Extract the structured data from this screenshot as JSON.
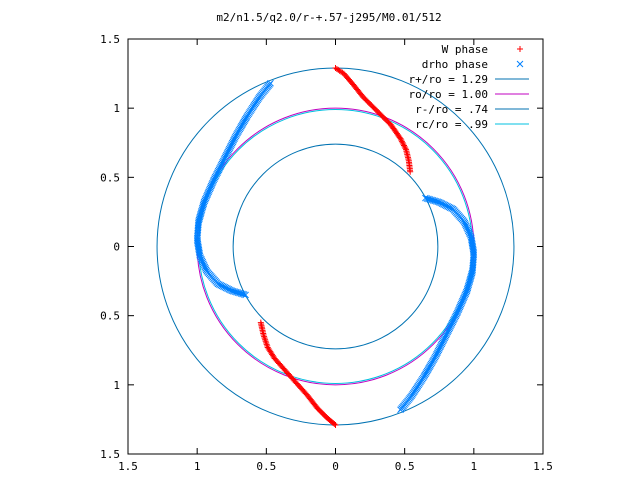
{
  "chart_data": {
    "type": "scatter",
    "title": "m2/n1.5/q2.0/r-+.57-j295/M0.01/512",
    "xlabel": "",
    "ylabel": "",
    "xlim": [
      -1.5,
      1.5
    ],
    "ylim": [
      -1.5,
      1.5
    ],
    "x_ticks": [
      -1.5,
      -1,
      -0.5,
      0,
      0.5,
      1,
      1.5
    ],
    "x_tick_labels": [
      "1.5",
      "1",
      "0.5",
      "0",
      "0.5",
      "1",
      "1.5"
    ],
    "y_ticks": [
      1.5,
      1,
      0.5,
      0,
      -0.5,
      -1,
      -1.5
    ],
    "y_tick_labels": [
      "1.5",
      "1",
      "0.5",
      "0",
      "0.5",
      "1",
      "1.5"
    ],
    "grid": false,
    "legend_position": "top-right",
    "series": [
      {
        "name": "W phase",
        "kind": "points",
        "marker": "plus",
        "color": "#ff0000",
        "branches": [
          {
            "x": [
              0.0,
              0.06,
              0.12,
              0.2,
              0.3,
              0.4,
              0.47,
              0.51,
              0.53,
              0.54
            ],
            "y": [
              1.29,
              1.25,
              1.18,
              1.08,
              0.98,
              0.88,
              0.78,
              0.7,
              0.62,
              0.54
            ]
          },
          {
            "x": [
              0.0,
              -0.06,
              -0.13,
              -0.2,
              -0.28,
              -0.36,
              -0.44,
              -0.49,
              -0.52,
              -0.54
            ],
            "y": [
              -1.29,
              -1.24,
              -1.17,
              -1.08,
              -0.99,
              -0.9,
              -0.81,
              -0.73,
              -0.64,
              -0.55
            ]
          }
        ]
      },
      {
        "name": "drho phase",
        "kind": "points",
        "marker": "cross",
        "color": "#0080ff",
        "branches": [
          {
            "x": [
              0.65,
              0.75,
              0.85,
              0.93,
              0.98,
              1.0,
              0.99,
              0.95,
              0.88,
              0.8,
              0.72,
              0.64,
              0.55,
              0.47
            ],
            "y": [
              0.35,
              0.32,
              0.27,
              0.18,
              0.07,
              -0.05,
              -0.18,
              -0.32,
              -0.48,
              -0.64,
              -0.8,
              -0.94,
              -1.08,
              -1.18
            ]
          },
          {
            "x": [
              -0.65,
              -0.75,
              -0.85,
              -0.93,
              -0.98,
              -1.0,
              -0.99,
              -0.95,
              -0.88,
              -0.8,
              -0.72,
              -0.64,
              -0.55,
              -0.47
            ],
            "y": [
              -0.35,
              -0.32,
              -0.27,
              -0.18,
              -0.07,
              0.05,
              0.18,
              0.32,
              0.48,
              0.64,
              0.8,
              0.94,
              1.08,
              1.18
            ]
          }
        ]
      },
      {
        "name": "r+/ro = 1.29",
        "kind": "circle",
        "radius": 1.29,
        "color": "#0072b2"
      },
      {
        "name": "ro/ro = 1.00",
        "kind": "circle",
        "radius": 1.0,
        "color": "#c000c0"
      },
      {
        "name": "r-/ro = .74",
        "kind": "circle",
        "radius": 0.74,
        "color": "#0072b2"
      },
      {
        "name": "rc/ro = .99",
        "kind": "circle",
        "radius": 0.99,
        "color": "#00c0e0"
      }
    ]
  }
}
